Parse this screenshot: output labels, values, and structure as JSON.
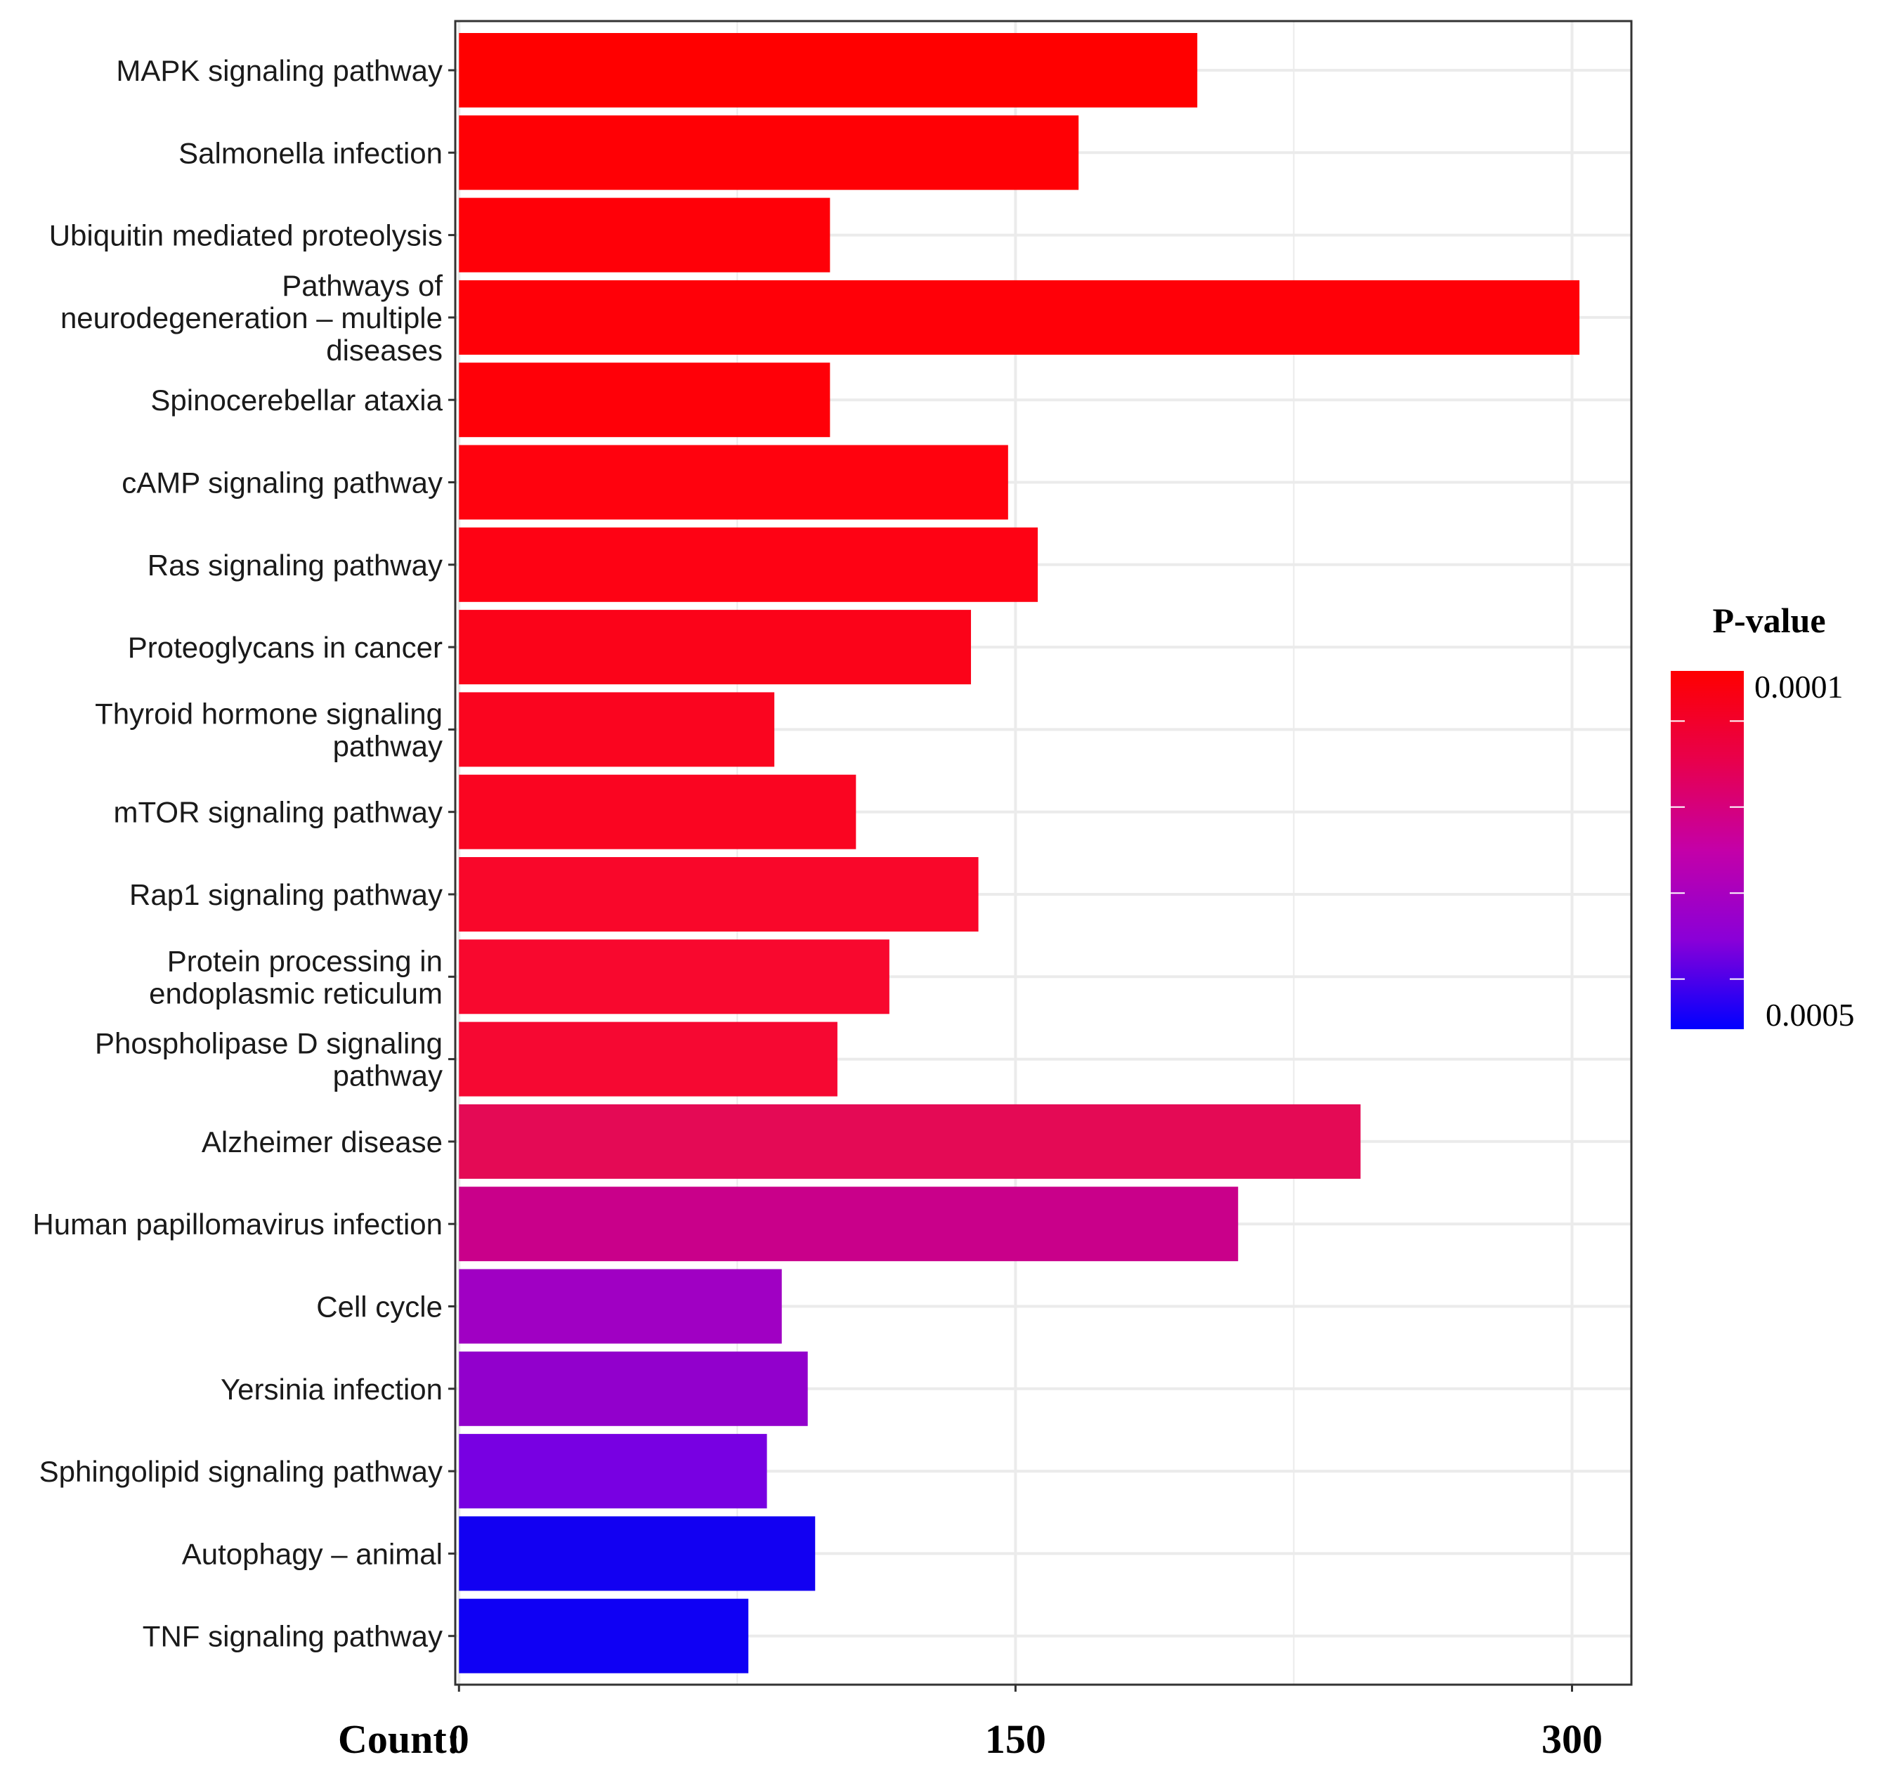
{
  "chart_data": {
    "type": "bar",
    "orientation": "horizontal",
    "categories": [
      "MAPK signaling pathway",
      "Salmonella infection",
      "Ubiquitin mediated proteolysis",
      "Pathways of neurodegeneration - multiple diseases",
      "Spinocerebellar ataxia",
      "cAMP signaling pathway",
      "Ras signaling pathway",
      "Proteoglycans in cancer",
      "Thyroid hormone signaling pathway",
      "mTOR signaling pathway",
      "Rap1 signaling pathway",
      "Protein processing in endoplasmic reticulum",
      "Phospholipase D signaling pathway",
      "Alzheimer disease",
      "Human papillomavirus infection",
      "Cell cycle",
      "Yersinia infection",
      "Sphingolipid signaling pathway",
      "Autophagy - animal",
      "TNF signaling pathway"
    ],
    "category_label_lines": [
      [
        "MAPK signaling pathway"
      ],
      [
        "Salmonella infection"
      ],
      [
        "Ubiquitin mediated proteolysis"
      ],
      [
        "Pathways of",
        "neurodegeneration – multiple",
        "diseases"
      ],
      [
        "Spinocerebellar ataxia"
      ],
      [
        "cAMP signaling pathway"
      ],
      [
        "Ras signaling pathway"
      ],
      [
        "Proteoglycans in cancer"
      ],
      [
        "Thyroid hormone signaling",
        "pathway"
      ],
      [
        "mTOR signaling pathway"
      ],
      [
        "Rap1 signaling pathway"
      ],
      [
        "Protein processing in",
        "endoplasmic reticulum"
      ],
      [
        "Phospholipase D signaling",
        "pathway"
      ],
      [
        "Alzheimer disease"
      ],
      [
        "Human papillomavirus infection"
      ],
      [
        "Cell cycle"
      ],
      [
        "Yersinia infection"
      ],
      [
        "Sphingolipid signaling pathway"
      ],
      [
        "Autophagy – animal"
      ],
      [
        "TNF signaling pathway"
      ]
    ],
    "values": [
      199,
      167,
      100,
      302,
      100,
      148,
      156,
      138,
      85,
      107,
      140,
      116,
      102,
      243,
      210,
      87,
      94,
      83,
      96,
      78
    ],
    "bar_colors": [
      "#ff0000",
      "#ff0005",
      "#ff0008",
      "#ff0008",
      "#ff0008",
      "#ff020e",
      "#fe0214",
      "#fb0319",
      "#fa051f",
      "#fa0521",
      "#f9072a",
      "#f8082e",
      "#f60832",
      "#e40a55",
      "#c9008a",
      "#a000c3",
      "#9200cc",
      "#7800e2",
      "#1200f2",
      "#0f00f4"
    ],
    "xlabel": "Count:",
    "x_ticks": [
      0,
      150,
      300
    ],
    "x_tick_labels": [
      "0",
      "150",
      "300"
    ],
    "xlim": [
      -1,
      316
    ],
    "grid": true,
    "legend": {
      "title": "P-value",
      "placement": "right",
      "labels": [
        "0.0001",
        "0.0005"
      ],
      "gradient_colors": [
        "#ff0000",
        "#e8004c",
        "#c400a8",
        "#8a00d8",
        "#0000ff"
      ]
    }
  }
}
